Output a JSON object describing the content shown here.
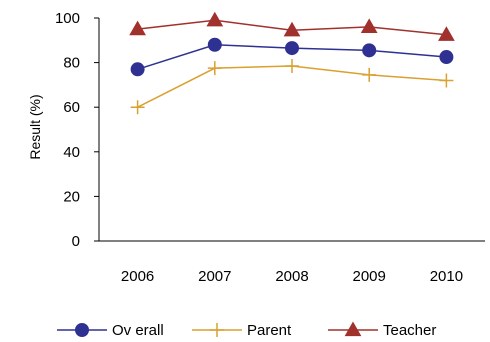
{
  "chart_data": {
    "type": "line",
    "title": "",
    "xlabel": "",
    "ylabel": "Result (%)",
    "categories": [
      "2006",
      "2007",
      "2008",
      "2009",
      "2010"
    ],
    "ylim": [
      0,
      100
    ],
    "yticks": [
      "0",
      "20",
      "40",
      "60",
      "80",
      "100"
    ],
    "grid": false,
    "legend_position": "bottom",
    "series": [
      {
        "name": "Ov erall",
        "color": "#2E3192",
        "marker": "circle",
        "values": [
          77,
          88,
          86.5,
          85.5,
          82.5
        ]
      },
      {
        "name": "Parent",
        "color": "#DAA030",
        "marker": "plus",
        "values": [
          60,
          77.5,
          78.5,
          74.5,
          72
        ]
      },
      {
        "name": "Teacher",
        "color": "#A0312D",
        "marker": "triangle",
        "values": [
          95,
          99,
          94.5,
          96,
          92.5
        ]
      }
    ]
  }
}
